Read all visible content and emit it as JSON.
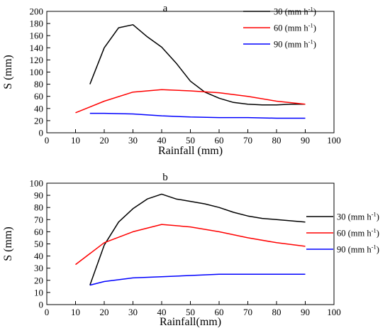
{
  "chart_data": [
    {
      "type": "line",
      "panel_label": "a",
      "title": "",
      "xlabel": "Rainfall (mm)",
      "ylabel": "S (mm)",
      "xlim": [
        0,
        100
      ],
      "ylim": [
        0,
        200
      ],
      "x_ticks": [
        "0",
        "10",
        "20",
        "30",
        "40",
        "50",
        "60",
        "70",
        "80",
        "90",
        "100"
      ],
      "y_ticks": [
        "0",
        "20",
        "40",
        "60",
        "80",
        "100",
        "120",
        "140",
        "160",
        "180",
        "200"
      ],
      "grid": false,
      "legend_position": "top-right",
      "series": [
        {
          "name": "30 (mm h",
          "name_sup": "-1",
          "name_tail": ")",
          "color": "#000000",
          "points": [
            [
              15,
              80
            ],
            [
              20,
              140
            ],
            [
              25,
              173
            ],
            [
              30,
              178
            ],
            [
              35,
              158
            ],
            [
              40,
              141
            ],
            [
              45,
              115
            ],
            [
              50,
              85
            ],
            [
              55,
              67
            ],
            [
              60,
              57
            ],
            [
              65,
              50
            ],
            [
              70,
              47
            ],
            [
              75,
              46
            ],
            [
              80,
              46
            ],
            [
              85,
              47
            ],
            [
              90,
              47
            ]
          ]
        },
        {
          "name": "60 (mm  h",
          "name_sup": "-1",
          "name_tail": ")",
          "color": "#ff0000",
          "points": [
            [
              10,
              33
            ],
            [
              20,
              52
            ],
            [
              30,
              67
            ],
            [
              40,
              71
            ],
            [
              50,
              69
            ],
            [
              60,
              66
            ],
            [
              70,
              60
            ],
            [
              80,
              52
            ],
            [
              90,
              47
            ]
          ]
        },
        {
          "name": "90 (mm  h",
          "name_sup": "-1",
          "name_tail": ")",
          "color": "#0000ff",
          "points": [
            [
              15,
              32
            ],
            [
              20,
              32
            ],
            [
              30,
              31
            ],
            [
              40,
              28
            ],
            [
              50,
              26
            ],
            [
              60,
              25
            ],
            [
              70,
              25
            ],
            [
              80,
              24
            ],
            [
              90,
              24
            ]
          ]
        }
      ]
    },
    {
      "type": "line",
      "panel_label": "b",
      "title": "",
      "xlabel": "Rainfall(mm)",
      "ylabel": "S (mm)",
      "xlim": [
        0,
        100
      ],
      "ylim": [
        0,
        100
      ],
      "x_ticks": [
        "0",
        "10",
        "20",
        "30",
        "40",
        "50",
        "60",
        "70",
        "80",
        "90",
        "100"
      ],
      "y_ticks": [
        "0",
        "10",
        "20",
        "30",
        "40",
        "50",
        "60",
        "70",
        "80",
        "90",
        "100"
      ],
      "grid": false,
      "legend_position": "right",
      "series": [
        {
          "name": "30 (mm h",
          "name_sup": "-1",
          "name_tail": ")",
          "color": "#000000",
          "points": [
            [
              15,
              16
            ],
            [
              20,
              49
            ],
            [
              25,
              68
            ],
            [
              30,
              79
            ],
            [
              35,
              87
            ],
            [
              40,
              91
            ],
            [
              45,
              87
            ],
            [
              50,
              85
            ],
            [
              55,
              83
            ],
            [
              60,
              80
            ],
            [
              65,
              76
            ],
            [
              70,
              73
            ],
            [
              75,
              71
            ],
            [
              80,
              70
            ],
            [
              85,
              69
            ],
            [
              90,
              68
            ]
          ]
        },
        {
          "name": "60 (mm h",
          "name_sup": "-1",
          "name_tail": ")",
          "color": "#ff0000",
          "points": [
            [
              10,
              33
            ],
            [
              20,
              51
            ],
            [
              30,
              60
            ],
            [
              40,
              66
            ],
            [
              50,
              64
            ],
            [
              60,
              60
            ],
            [
              70,
              55
            ],
            [
              80,
              51
            ],
            [
              90,
              48
            ]
          ]
        },
        {
          "name": "90 (mm h",
          "name_sup": "-1",
          "name_tail": ")",
          "color": "#0000ff",
          "points": [
            [
              15,
              16
            ],
            [
              20,
              19
            ],
            [
              30,
              22
            ],
            [
              40,
              23
            ],
            [
              50,
              24
            ],
            [
              60,
              25
            ],
            [
              70,
              25
            ],
            [
              80,
              25
            ],
            [
              90,
              25
            ]
          ]
        }
      ]
    }
  ]
}
